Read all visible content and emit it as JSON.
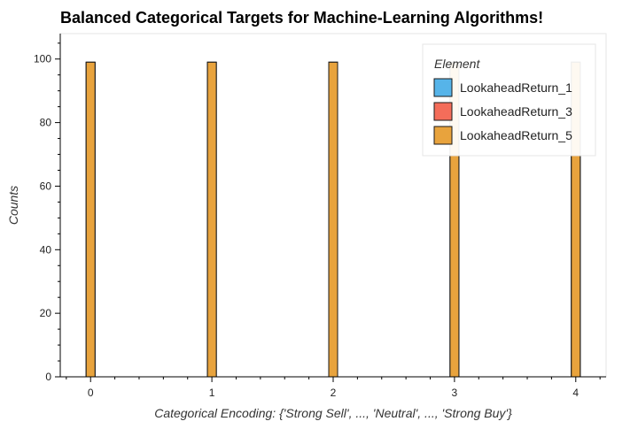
{
  "chart_data": {
    "type": "bar",
    "title": "Balanced Categorical Targets for Machine-Learning Algorithms!",
    "xlabel": "Categorical Encoding: {'Strong Sell', ..., 'Neutral', ..., 'Strong Buy'}",
    "ylabel": "Counts",
    "x_ticks": [
      "0",
      "1",
      "2",
      "3",
      "4"
    ],
    "y_ticks": [
      "0",
      "20",
      "40",
      "60",
      "80",
      "100"
    ],
    "xlim": [
      -0.25,
      4.25
    ],
    "ylim": [
      0,
      108
    ],
    "grid": false,
    "legend": {
      "title": "Element",
      "position": "top-right",
      "entries": [
        "LookaheadReturn_1",
        "LookaheadReturn_3",
        "LookaheadReturn_5"
      ]
    },
    "x": [
      0,
      1,
      2,
      3,
      4
    ],
    "series": [
      {
        "name": "LookaheadReturn_1",
        "color": "#56b4e9",
        "values": [
          99,
          99,
          99,
          99,
          99
        ]
      },
      {
        "name": "LookaheadReturn_3",
        "color": "#f46d5a",
        "values": [
          99,
          99,
          99,
          99,
          99
        ]
      },
      {
        "name": "LookaheadReturn_5",
        "color": "#e8a33d",
        "values": [
          99,
          99,
          99,
          99,
          99
        ]
      }
    ]
  }
}
